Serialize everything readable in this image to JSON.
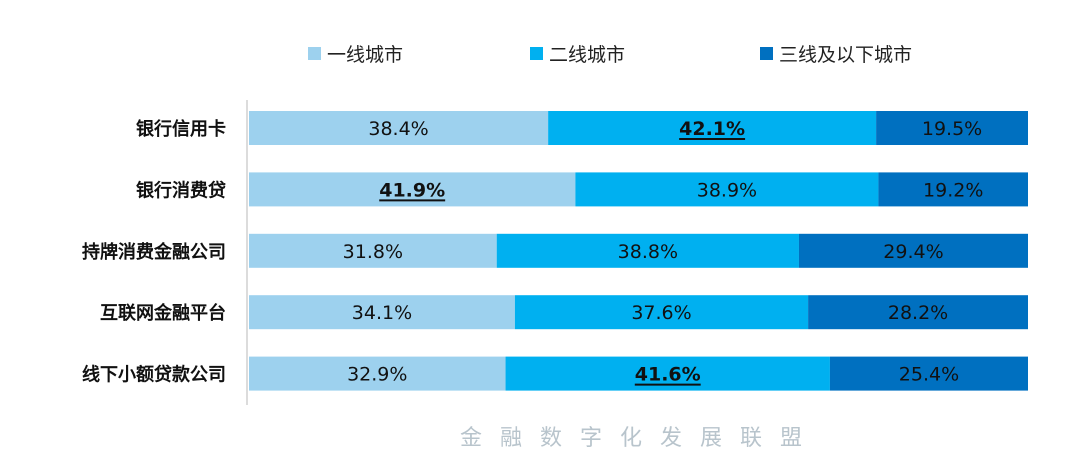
{
  "chart_data": {
    "type": "bar",
    "orientation": "horizontal",
    "stacked": "percent",
    "categories": [
      "银行信用卡",
      "银行消费贷",
      "持牌消费金融公司",
      "互联网金融平台",
      "线下小额贷款公司"
    ],
    "series": [
      {
        "name": "一线城市",
        "color": "#9dd1ee",
        "values": [
          38.4,
          41.9,
          31.8,
          34.1,
          32.9
        ]
      },
      {
        "name": "二线城市",
        "color": "#00b0f0",
        "values": [
          42.1,
          38.9,
          38.8,
          37.6,
          41.6
        ]
      },
      {
        "name": "三线及以下城市",
        "color": "#0070c0",
        "values": [
          19.5,
          19.2,
          29.4,
          28.2,
          25.4
        ]
      }
    ],
    "highlighted": [
      [
        0,
        1
      ],
      [
        1,
        0
      ],
      [
        4,
        1
      ]
    ],
    "value_suffix": "%",
    "legend_position": "top",
    "grid": false
  },
  "watermark": "金融数字化发展联盟"
}
